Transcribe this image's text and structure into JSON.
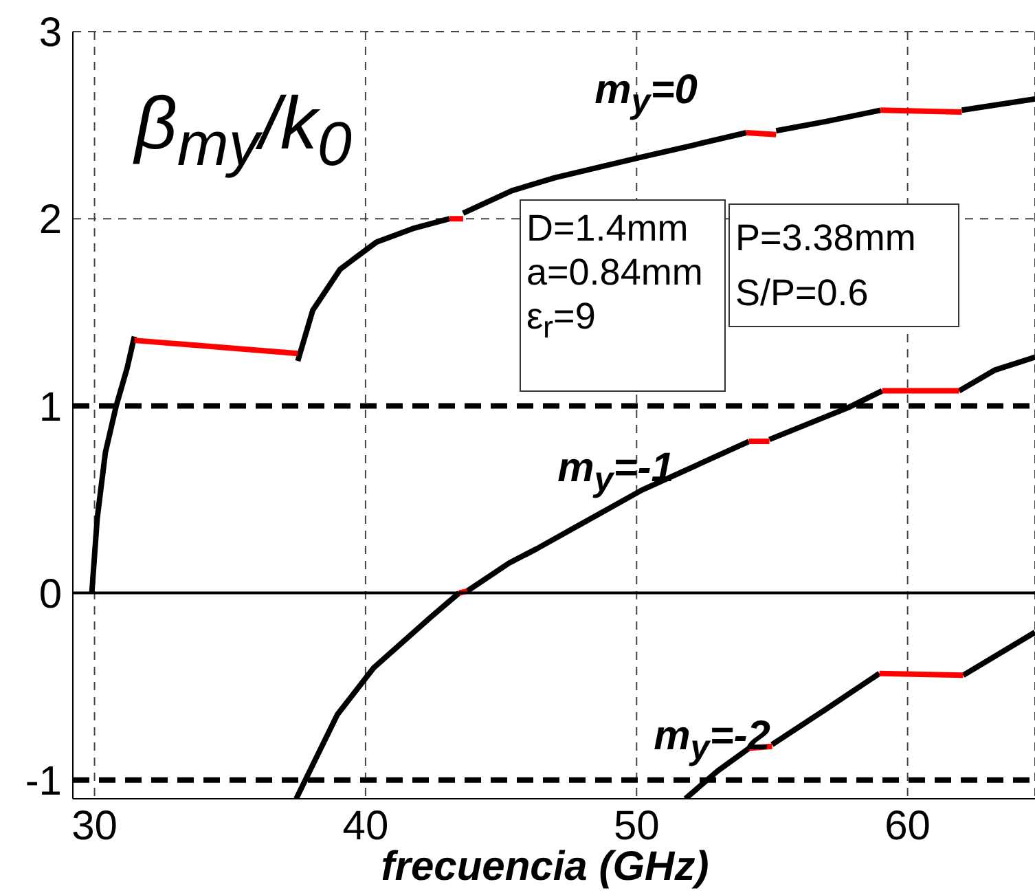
{
  "chart_data": {
    "type": "line",
    "xlabel": "frecuencia (GHz)",
    "ylabel": "β$_{m}$$_{y}$/k$_{0}$",
    "xlim": [
      29.2,
      64.7
    ],
    "ylim": [
      -1.1,
      3
    ],
    "xticks": [
      30,
      40,
      50,
      60
    ],
    "yticks": [
      -1,
      0,
      1,
      2,
      3
    ],
    "grid": true,
    "legend": false,
    "marker": "none",
    "line_style": "solid",
    "series": [
      {
        "color": "#000000",
        "x": [
          29.9,
          30.1,
          30.4,
          30.8,
          31.2,
          31.47,
          34,
          37.5,
          38.05,
          39.06,
          40.4,
          41.8,
          43.1,
          43.35,
          43.6,
          45.4,
          47.0,
          50.2,
          52.0,
          54.05,
          54.6,
          55.15,
          57.0,
          59.0,
          60.5,
          62.0,
          64.7
        ],
        "values": [
          0,
          0.4,
          0.75,
          1.0,
          1.2,
          1.37,
          null,
          1.24,
          1.51,
          1.73,
          1.875,
          1.95,
          2.0,
          null,
          2.03,
          2.15,
          2.22,
          2.33,
          2.39,
          2.46,
          null,
          2.47,
          2.52,
          2.58,
          null,
          2.58,
          2.64
        ]
      },
      {
        "color": "#ff0000",
        "x": [
          31.47,
          37.5,
          40,
          43.1,
          43.6,
          50,
          54.05,
          55.15,
          57,
          59.0,
          62.0
        ],
        "values": [
          1.35,
          1.28,
          null,
          2.0,
          2.0,
          null,
          2.46,
          2.45,
          null,
          2.58,
          2.57
        ]
      },
      {
        "color": "#000000",
        "x": [
          37.44,
          38.96,
          40.3,
          42.4,
          43.45,
          43.6,
          43.75,
          45.3,
          46.3,
          50.2,
          54.15,
          54.5,
          54.9,
          57.8,
          59.06,
          60.5,
          61.9,
          63.2,
          64.7
        ],
        "values": [
          -1.1,
          -0.65,
          -0.4,
          -0.13,
          0,
          null,
          0.01,
          0.16,
          0.235,
          0.55,
          0.81,
          null,
          0.82,
          0.99,
          1.08,
          null,
          1.08,
          1.19,
          1.26
        ]
      },
      {
        "color": "#ff0000",
        "x": [
          43.45,
          43.75,
          50,
          54.15,
          54.9,
          57,
          59.06,
          61.9
        ],
        "values": [
          0,
          0.01,
          null,
          0.81,
          0.81,
          null,
          1.08,
          1.08
        ]
      },
      {
        "color": "#000000",
        "x": [
          51.8,
          53.0,
          54.15,
          54.6,
          55.0,
          57.0,
          58.96,
          60.5,
          62.05,
          64.7
        ],
        "values": [
          -1.1,
          -0.95,
          -0.83,
          null,
          -0.81,
          -0.62,
          -0.43,
          null,
          -0.44,
          -0.21
        ]
      },
      {
        "color": "#ff0000",
        "x": [
          54.15,
          55.0,
          57,
          58.96,
          62.05
        ],
        "values": [
          -0.83,
          -0.82,
          null,
          -0.43,
          -0.44
        ]
      }
    ],
    "ref_lines": [
      {
        "axis": "y",
        "value": 0,
        "color": "#000000",
        "line_style": "solid"
      },
      {
        "axis": "y",
        "value": 1,
        "color": "#000000",
        "line_style": "dashed"
      },
      {
        "axis": "y",
        "value": -1,
        "color": "#000000",
        "line_style": "dashed"
      }
    ],
    "annotations": [
      "m$_{y}$=0",
      "m$_{y}$=-1",
      "m$_{y}$=-2",
      "D=1.4mm",
      "a=0.84mm",
      "ε$_{r}$=9",
      "P=3.38mm",
      "S/P=0.6"
    ]
  }
}
